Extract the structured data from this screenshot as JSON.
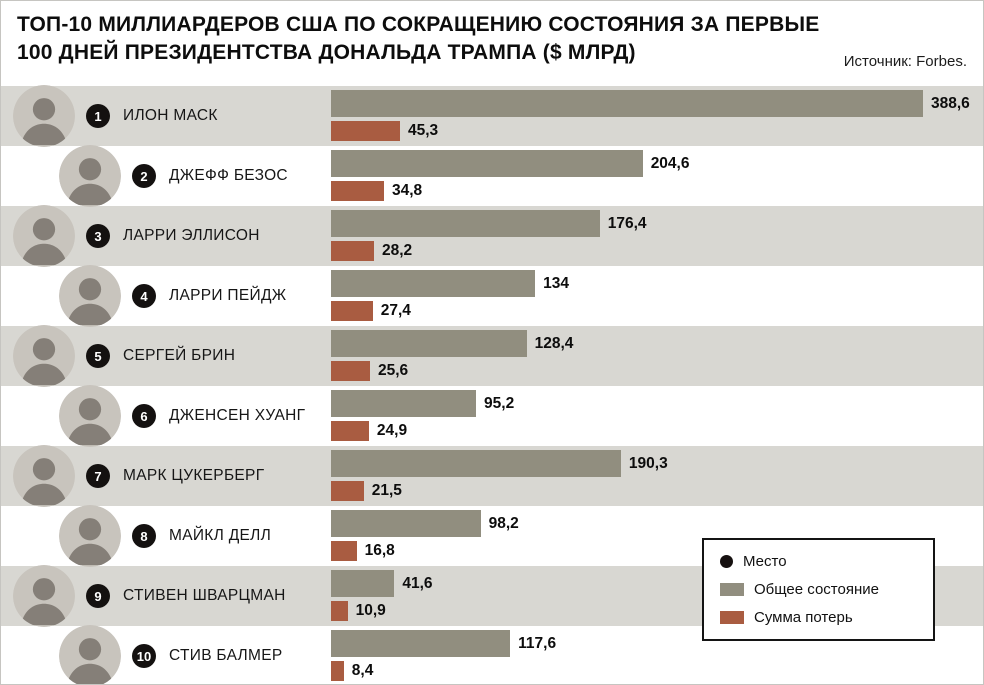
{
  "header": {
    "title_line1": "ТОП-10 МИЛЛИАРДЕРОВ США ПО СОКРАЩЕНИЮ СОСТОЯНИЯ ЗА ПЕРВЫЕ",
    "title_line2": "100 ДНЕЙ ПРЕЗИДЕНТСТВА ДОНАЛЬДА ТРАМПА ($ МЛРД)",
    "source": "Источник: Forbes."
  },
  "legend": {
    "items": [
      {
        "label": "Место",
        "swatch": "dot",
        "color": "#161110"
      },
      {
        "label": "Общее состояние",
        "swatch": "rect",
        "color": "#918e7f"
      },
      {
        "label": "Сумма потерь",
        "swatch": "rect",
        "color": "#a95c41"
      }
    ]
  },
  "colors": {
    "total_bar": "#918e7f",
    "loss_bar": "#a95c41",
    "row_stripe": "#d8d7d2",
    "badge": "#141110"
  },
  "chart_data": {
    "type": "bar",
    "orientation": "horizontal",
    "title": "ТОП-10 МИЛЛИАРДЕРОВ США ПО СОКРАЩЕНИЮ СОСТОЯНИЯ ЗА ПЕРВЫЕ 100 ДНЕЙ ПРЕЗИДЕНТСТВА ДОНАЛЬДА ТРАМПА ($ МЛРД)",
    "source": "Источник: Forbes.",
    "unit": "$ млрд",
    "xlim": [
      0,
      400
    ],
    "grid": false,
    "legend_position": "bottom-right",
    "categories": [
      "ИЛОН МАСК",
      "ДЖЕФФ БЕЗОС",
      "ЛАРРИ ЭЛЛИСОН",
      "ЛАРРИ ПЕЙДЖ",
      "СЕРГЕЙ БРИН",
      "ДЖЕНСЕН ХУАНГ",
      "МАРК ЦУКЕРБЕРГ",
      "МАЙКЛ ДЕЛЛ",
      "СТИВЕН ШВАРЦМАН",
      "СТИВ БАЛМЕР"
    ],
    "series": [
      {
        "name": "Общее состояние",
        "color": "#918e7f",
        "values": [
          388.6,
          204.6,
          176.4,
          134,
          128.4,
          95.2,
          190.3,
          98.2,
          41.6,
          117.6
        ]
      },
      {
        "name": "Сумма потерь",
        "color": "#a95c41",
        "values": [
          45.3,
          34.8,
          28.2,
          27.4,
          25.6,
          24.9,
          21.5,
          16.8,
          10.9,
          8.4
        ]
      }
    ],
    "rows": [
      {
        "rank": "1",
        "name": "ИЛОН МАСК",
        "total": 388.6,
        "total_label": "388,6",
        "loss": 45.3,
        "loss_label": "45,3"
      },
      {
        "rank": "2",
        "name": "ДЖЕФФ БЕЗОС",
        "total": 204.6,
        "total_label": "204,6",
        "loss": 34.8,
        "loss_label": "34,8"
      },
      {
        "rank": "3",
        "name": "ЛАРРИ ЭЛЛИСОН",
        "total": 176.4,
        "total_label": "176,4",
        "loss": 28.2,
        "loss_label": "28,2"
      },
      {
        "rank": "4",
        "name": "ЛАРРИ ПЕЙДЖ",
        "total": 134,
        "total_label": "134",
        "loss": 27.4,
        "loss_label": "27,4"
      },
      {
        "rank": "5",
        "name": "СЕРГЕЙ БРИН",
        "total": 128.4,
        "total_label": "128,4",
        "loss": 25.6,
        "loss_label": "25,6"
      },
      {
        "rank": "6",
        "name": "ДЖЕНСЕН ХУАНГ",
        "total": 95.2,
        "total_label": "95,2",
        "loss": 24.9,
        "loss_label": "24,9"
      },
      {
        "rank": "7",
        "name": "МАРК ЦУКЕРБЕРГ",
        "total": 190.3,
        "total_label": "190,3",
        "loss": 21.5,
        "loss_label": "21,5"
      },
      {
        "rank": "8",
        "name": "МАЙКЛ ДЕЛЛ",
        "total": 98.2,
        "total_label": "98,2",
        "loss": 16.8,
        "loss_label": "16,8"
      },
      {
        "rank": "9",
        "name": "СТИВЕН ШВАРЦМАН",
        "total": 41.6,
        "total_label": "41,6",
        "loss": 10.9,
        "loss_label": "10,9"
      },
      {
        "rank": "10",
        "name": "СТИВ БАЛМЕР",
        "total": 117.6,
        "total_label": "117,6",
        "loss": 8.4,
        "loss_label": "8,4"
      }
    ]
  }
}
